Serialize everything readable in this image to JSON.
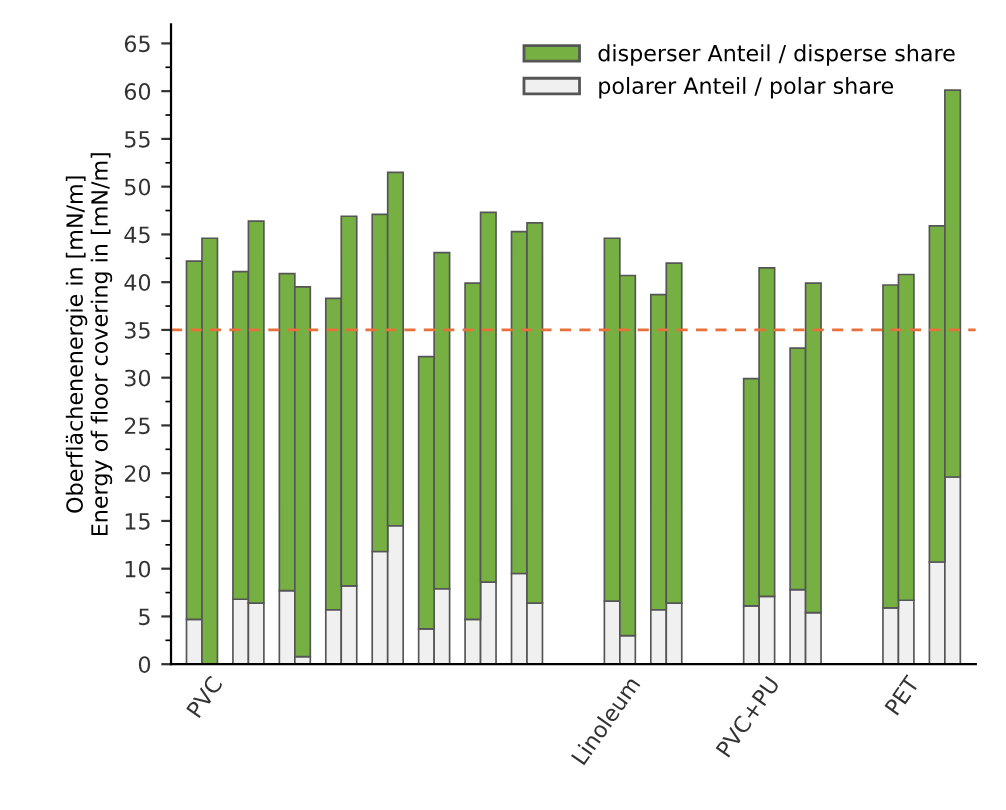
{
  "chart_data": {
    "type": "bar",
    "stacked": true,
    "ylabel": "Oberflächenenergie in [mN/m]\nEnergy of floor covering in [mN/m]",
    "categories": [
      null,
      "PVC",
      null,
      null,
      null,
      null,
      null,
      null,
      null,
      null,
      null,
      null,
      null,
      null,
      null,
      null,
      null,
      null,
      null,
      null,
      null,
      null,
      null,
      null,
      null,
      null,
      null,
      null,
      "Linoleum",
      null,
      null,
      null,
      null,
      null,
      null,
      null,
      null,
      "PVC+PU",
      null,
      null,
      null,
      null,
      null,
      null,
      null,
      null,
      "PET",
      null,
      null,
      null
    ],
    "series": [
      {
        "name": "polarer Anteil / polar share",
        "color": "#f0f0f0",
        "values": [
          4.7,
          0,
          null,
          6.8,
          6.4,
          null,
          7.7,
          0.8,
          null,
          5.7,
          8.2,
          null,
          11.8,
          14.5,
          null,
          3.7,
          7.9,
          null,
          4.7,
          8.6,
          null,
          9.5,
          6.4,
          null,
          null,
          null,
          null,
          6.6,
          3.0,
          null,
          5.7,
          6.4,
          null,
          null,
          null,
          null,
          6.1,
          7.1,
          null,
          7.8,
          5.4,
          null,
          null,
          null,
          null,
          5.9,
          6.7,
          null,
          10.7,
          19.6
        ]
      },
      {
        "name": "disperser Anteil / disperse share",
        "color": "#76b043",
        "values": [
          37.5,
          44.6,
          null,
          34.3,
          40.0,
          null,
          33.2,
          38.7,
          null,
          32.6,
          38.7,
          null,
          35.3,
          37.0,
          null,
          28.5,
          35.2,
          null,
          35.2,
          38.7,
          null,
          35.8,
          39.8,
          null,
          null,
          null,
          null,
          38.0,
          37.7,
          null,
          33.0,
          35.6,
          null,
          null,
          null,
          null,
          23.8,
          34.4,
          null,
          25.3,
          34.5,
          null,
          null,
          null,
          null,
          33.8,
          34.1,
          null,
          35.2,
          40.5
        ]
      }
    ],
    "ylim": [
      0,
      67
    ],
    "yticks": [
      0,
      5,
      10,
      15,
      20,
      25,
      30,
      35,
      40,
      45,
      50,
      55,
      60,
      65
    ],
    "ref_lines": [
      {
        "axis": "y",
        "value": 35,
        "color": "#e8703a",
        "line_style": "dashed"
      }
    ],
    "legend": "top right",
    "grid": false
  }
}
